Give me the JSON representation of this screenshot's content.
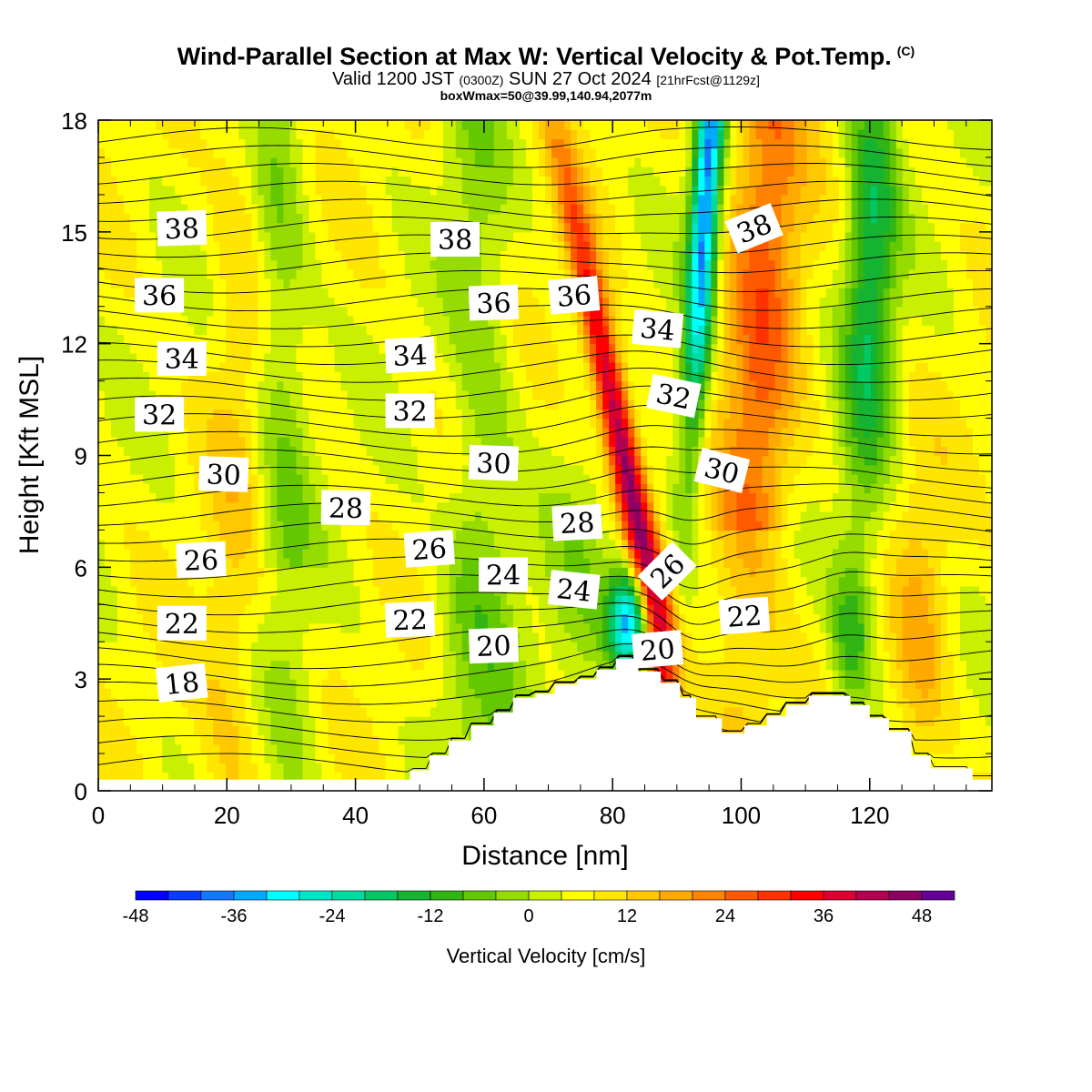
{
  "header": {
    "title": "Wind-Parallel Section at Max W: Vertical Velocity & Pot.Temp.",
    "copyright": "(C)",
    "valid_prefix": "Valid 1200 JST",
    "valid_utc": "(0300Z)",
    "valid_date": "SUN 27 Oct 2024",
    "forecast": "[21hrFcst@1129z]",
    "box_info": "boxWmax=50@39.99,140.94,2077m"
  },
  "chart_data": {
    "type": "heatmap",
    "xlabel": "Distance [nm]",
    "ylabel": "Height [Kft MSL]",
    "xlim": [
      0,
      139
    ],
    "ylim": [
      0,
      18
    ],
    "x_ticks": [
      0,
      20,
      40,
      60,
      80,
      100,
      120
    ],
    "y_ticks": [
      0,
      3,
      6,
      9,
      12,
      15,
      18
    ],
    "x_tick_labels": [
      "0",
      "20",
      "40",
      "60",
      "80",
      "100",
      "120"
    ],
    "y_tick_labels": [
      "0",
      "3",
      "6",
      "9",
      "12",
      "15",
      "18"
    ],
    "colorbar": {
      "title": "Vertical Velocity [cm/s]",
      "min": -48,
      "max": 52,
      "step": 4,
      "tick_values": [
        -48,
        -36,
        -24,
        -12,
        0,
        12,
        24,
        36,
        48
      ],
      "tick_labels": [
        "-48",
        "-36",
        "-24",
        "-12",
        "0",
        "12",
        "24",
        "36",
        "48"
      ],
      "colors": [
        "#0000ff",
        "#0a3cff",
        "#1478ff",
        "#00aaff",
        "#00ffff",
        "#00e6c8",
        "#00dca0",
        "#00c864",
        "#14b432",
        "#32b414",
        "#64c800",
        "#96dc00",
        "#c8f000",
        "#ffff00",
        "#ffe600",
        "#ffc800",
        "#ffaa00",
        "#ff8200",
        "#ff5a00",
        "#ff3200",
        "#ff0000",
        "#dc0032",
        "#b40050",
        "#8c0064",
        "#640096"
      ]
    },
    "terrain": [
      [
        0,
        0.3
      ],
      [
        48.5,
        0.3
      ],
      [
        48.5,
        0.55
      ],
      [
        51.5,
        0.55
      ],
      [
        51.5,
        0.95
      ],
      [
        54.5,
        0.95
      ],
      [
        54.5,
        1.35
      ],
      [
        58,
        1.35
      ],
      [
        58,
        1.75
      ],
      [
        61.5,
        1.75
      ],
      [
        61.5,
        2.1
      ],
      [
        64.5,
        2.1
      ],
      [
        64.5,
        2.5
      ],
      [
        68,
        2.5
      ],
      [
        68,
        2.6
      ],
      [
        71,
        2.6
      ],
      [
        71,
        2.85
      ],
      [
        74.5,
        2.85
      ],
      [
        74.5,
        3.0
      ],
      [
        77.5,
        3.0
      ],
      [
        77.5,
        3.25
      ],
      [
        80.5,
        3.25
      ],
      [
        80.5,
        3.55
      ],
      [
        84,
        3.55
      ],
      [
        84,
        3.2
      ],
      [
        87.5,
        3.2
      ],
      [
        87.5,
        2.9
      ],
      [
        90.5,
        2.9
      ],
      [
        90.5,
        2.5
      ],
      [
        93,
        2.5
      ],
      [
        93,
        1.95
      ],
      [
        97,
        1.95
      ],
      [
        97,
        1.55
      ],
      [
        100.5,
        1.55
      ],
      [
        100.5,
        1.75
      ],
      [
        104,
        1.75
      ],
      [
        104,
        2.0
      ],
      [
        107,
        2.0
      ],
      [
        107,
        2.3
      ],
      [
        110.5,
        2.3
      ],
      [
        110.5,
        2.55
      ],
      [
        117,
        2.55
      ],
      [
        117,
        2.3
      ],
      [
        120,
        2.3
      ],
      [
        120,
        1.95
      ],
      [
        123,
        1.95
      ],
      [
        123,
        1.6
      ],
      [
        126.5,
        1.6
      ],
      [
        126.5,
        0.95
      ],
      [
        129.5,
        0.95
      ],
      [
        129.5,
        0.6
      ],
      [
        136,
        0.6
      ],
      [
        136,
        0.3
      ],
      [
        139,
        0.3
      ]
    ],
    "isentrope_labels": [
      {
        "text": "38",
        "x": 13,
        "y": 15.1,
        "angle": -2
      },
      {
        "text": "38",
        "x": 55.5,
        "y": 14.8,
        "angle": 0
      },
      {
        "text": "38",
        "x": 102,
        "y": 15.1,
        "angle": -22
      },
      {
        "text": "36",
        "x": 9.5,
        "y": 13.3,
        "angle": 0
      },
      {
        "text": "36",
        "x": 61.5,
        "y": 13.1,
        "angle": -2
      },
      {
        "text": "36",
        "x": 74,
        "y": 13.3,
        "angle": -5
      },
      {
        "text": "34",
        "x": 13,
        "y": 11.6,
        "angle": 0
      },
      {
        "text": "34",
        "x": 48.5,
        "y": 11.7,
        "angle": -3
      },
      {
        "text": "34",
        "x": 87,
        "y": 12.4,
        "angle": 5
      },
      {
        "text": "32",
        "x": 9.5,
        "y": 10.1,
        "angle": 0
      },
      {
        "text": "32",
        "x": 48.5,
        "y": 10.2,
        "angle": 0
      },
      {
        "text": "32",
        "x": 89.5,
        "y": 10.6,
        "angle": 12
      },
      {
        "text": "30",
        "x": 19.5,
        "y": 8.5,
        "angle": 2
      },
      {
        "text": "30",
        "x": 61.5,
        "y": 8.8,
        "angle": 2
      },
      {
        "text": "30",
        "x": 97,
        "y": 8.6,
        "angle": 14
      },
      {
        "text": "28",
        "x": 38.5,
        "y": 7.6,
        "angle": 1
      },
      {
        "text": "28",
        "x": 74.5,
        "y": 7.2,
        "angle": -3
      },
      {
        "text": "26",
        "x": 16,
        "y": 6.2,
        "angle": -2
      },
      {
        "text": "26",
        "x": 51.5,
        "y": 6.5,
        "angle": -4
      },
      {
        "text": "26",
        "x": 88.5,
        "y": 5.9,
        "angle": -45
      },
      {
        "text": "24",
        "x": 63,
        "y": 5.8,
        "angle": 0
      },
      {
        "text": "24",
        "x": 74,
        "y": 5.4,
        "angle": 6
      },
      {
        "text": "22",
        "x": 13,
        "y": 4.5,
        "angle": 0
      },
      {
        "text": "22",
        "x": 48.5,
        "y": 4.6,
        "angle": -2
      },
      {
        "text": "22",
        "x": 100.5,
        "y": 4.7,
        "angle": -4
      },
      {
        "text": "20",
        "x": 61.5,
        "y": 3.9,
        "angle": -2
      },
      {
        "text": "20",
        "x": 87,
        "y": 3.8,
        "angle": -5
      },
      {
        "text": "18",
        "x": 13,
        "y": 2.9,
        "angle": -6
      }
    ]
  }
}
